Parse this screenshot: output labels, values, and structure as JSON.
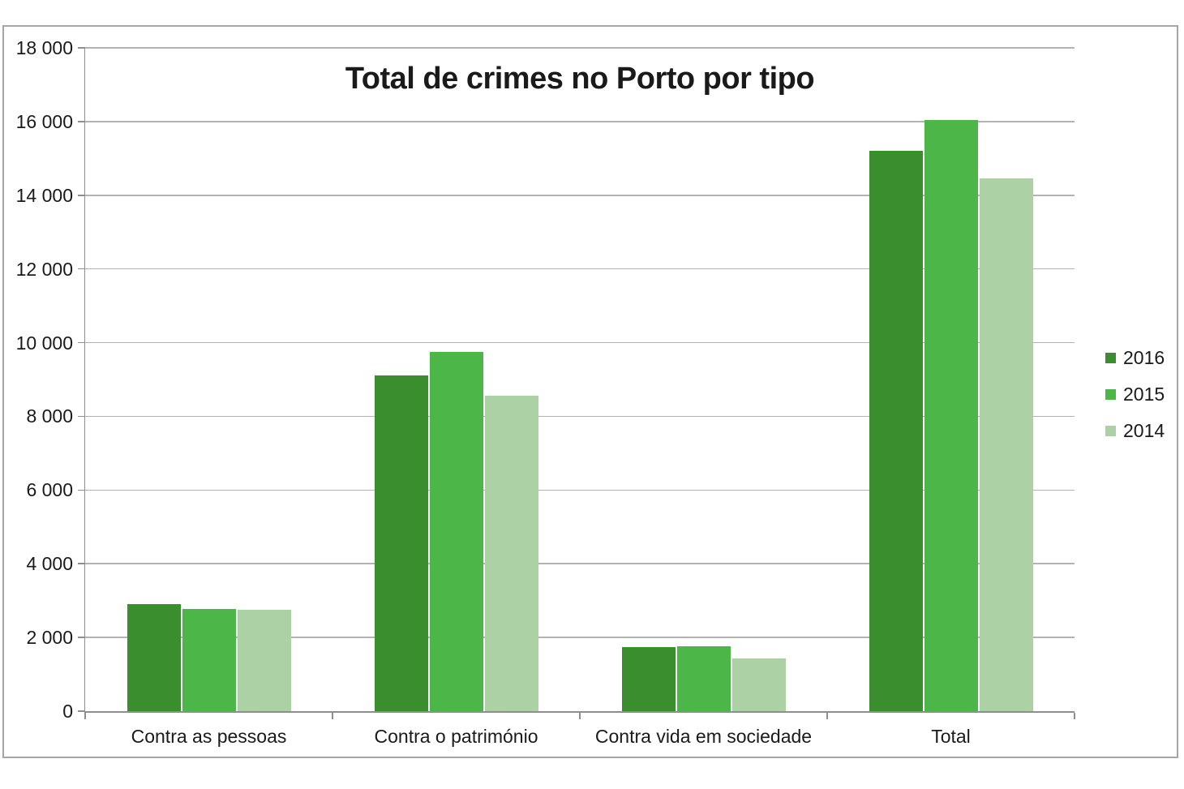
{
  "chart_data": {
    "type": "bar",
    "title": "Total de crimes no Porto por tipo",
    "categories": [
      "Contra as pessoas",
      "Contra o património",
      "Contra vida em sociedade",
      "Total"
    ],
    "series": [
      {
        "name": "2016",
        "color": "#3A8E2D",
        "values": [
          2900,
          9100,
          1730,
          15200
        ]
      },
      {
        "name": "2015",
        "color": "#4CB748",
        "values": [
          2770,
          9750,
          1750,
          16050
        ]
      },
      {
        "name": "2014",
        "color": "#ABD1A5",
        "values": [
          2750,
          8550,
          1440,
          14450
        ]
      }
    ],
    "ylim": [
      0,
      18000
    ],
    "ytick_step": 2000,
    "ytick_labels": [
      "0",
      "2 000",
      "4 000",
      "6 000",
      "8 000",
      "10 000",
      "12 000",
      "14 000",
      "16 000",
      "18 000"
    ],
    "xlabel": "",
    "ylabel": "",
    "grid": true,
    "legend_position": "right",
    "legend_entries": [
      "2016",
      "2015",
      "2014"
    ]
  },
  "colors": {
    "background": "#FFFFFF",
    "frame_border": "#A6A6A6",
    "gridline": "#B3B3B3",
    "axis": "#8E8E8E",
    "text": "#1A1A1A"
  }
}
